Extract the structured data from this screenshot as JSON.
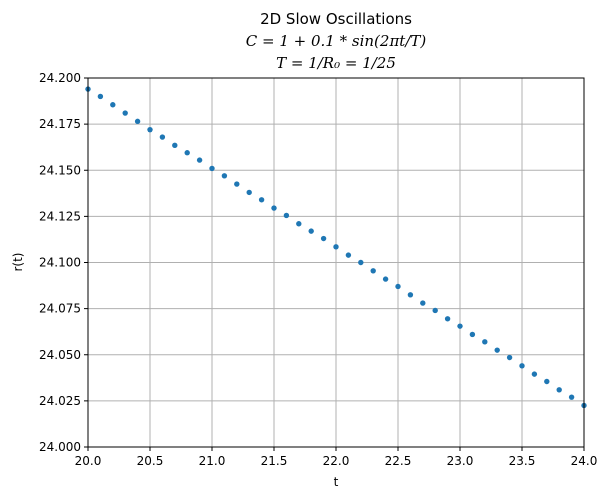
{
  "chart_data": {
    "type": "scatter",
    "title": [
      "2D Slow Oscillations",
      "C = 1 + 0.1 * sin(2πt/T)",
      "T = 1/R₀ = 1/25"
    ],
    "xlabel": "t",
    "ylabel": "r(t)",
    "xlim": [
      20.0,
      24.0
    ],
    "ylim": [
      24.0,
      24.2
    ],
    "xticks": [
      "20.0",
      "20.5",
      "21.0",
      "21.5",
      "22.0",
      "22.5",
      "23.0",
      "23.5",
      "24.0"
    ],
    "yticks": [
      "24.000",
      "24.025",
      "24.050",
      "24.075",
      "24.100",
      "24.125",
      "24.150",
      "24.175",
      "24.200"
    ],
    "grid": true,
    "marker_color": "#1f77b4",
    "series": [
      {
        "x": [
          20.0,
          20.1,
          20.2,
          20.3,
          20.4,
          20.5,
          20.6,
          20.7,
          20.8,
          20.9,
          21.0,
          21.1,
          21.2,
          21.3,
          21.4,
          21.5,
          21.6,
          21.7,
          21.8,
          21.9,
          22.0,
          22.1,
          22.2,
          22.3,
          22.4,
          22.5,
          22.6,
          22.7,
          22.8,
          22.9,
          23.0,
          23.1,
          23.2,
          23.3,
          23.4,
          23.5,
          23.6,
          23.7,
          23.8,
          23.9,
          24.0
        ],
        "y": [
          24.194,
          24.19,
          24.1855,
          24.181,
          24.1765,
          24.172,
          24.168,
          24.1635,
          24.1595,
          24.1555,
          24.151,
          24.147,
          24.1425,
          24.138,
          24.134,
          24.1295,
          24.1255,
          24.121,
          24.117,
          24.113,
          24.1085,
          24.104,
          24.1,
          24.0955,
          24.091,
          24.087,
          24.0825,
          24.078,
          24.074,
          24.0695,
          24.0655,
          24.061,
          24.057,
          24.0525,
          24.0485,
          24.044,
          24.0395,
          24.0355,
          24.031,
          24.027,
          24.0225
        ]
      }
    ]
  }
}
